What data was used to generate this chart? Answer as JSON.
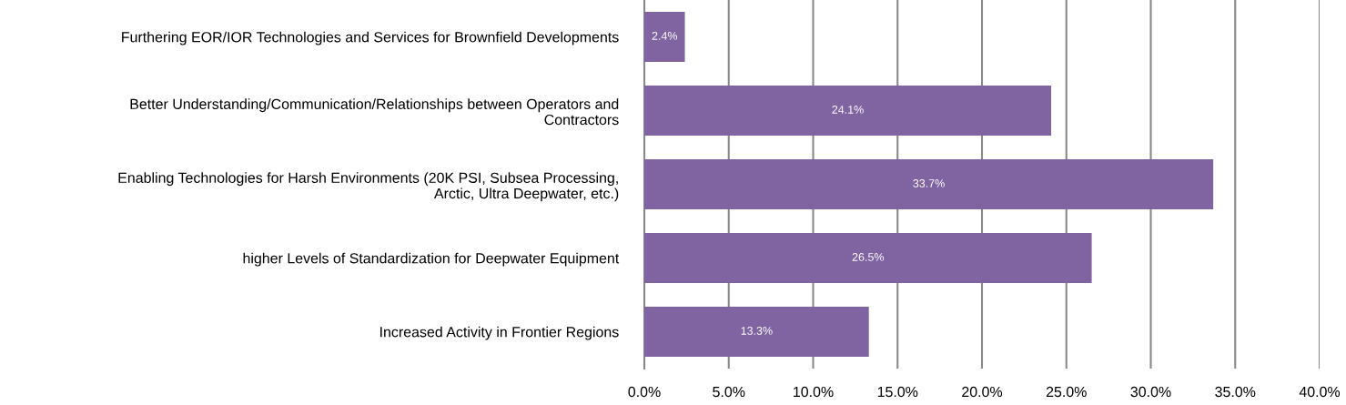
{
  "chart_data": {
    "type": "bar",
    "orientation": "horizontal",
    "categories": [
      "Furthering EOR/IOR Technologies and Services for Brownfield Developments",
      "Better Understanding/Communication/Relationships between Operators and\nContractors",
      "Enabling Technologies for Harsh Environments (20K PSI, Subsea Processing,\nArctic, Ultra Deepwater, etc.)",
      "higher Levels of Standardization for Deepwater Equipment",
      "Increased Activity in Frontier Regions"
    ],
    "values": [
      2.4,
      24.1,
      33.7,
      26.5,
      13.3
    ],
    "value_labels": [
      "2.4%",
      "24.1%",
      "33.7%",
      "26.5%",
      "13.3%"
    ],
    "color": "#8064a2",
    "xlim": [
      0,
      40
    ],
    "xticks": [
      {
        "value": 0,
        "label": "0.0%"
      },
      {
        "value": 5,
        "label": "5.0%"
      },
      {
        "value": 10,
        "label": "10.0%"
      },
      {
        "value": 15,
        "label": "15.0%"
      },
      {
        "value": 20,
        "label": "20.0%"
      },
      {
        "value": 25,
        "label": "25.0%"
      },
      {
        "value": 30,
        "label": "30.0%"
      },
      {
        "value": 35,
        "label": "35.0%"
      },
      {
        "value": 40,
        "label": "40.0%"
      }
    ],
    "grid": "x",
    "legend": false
  }
}
